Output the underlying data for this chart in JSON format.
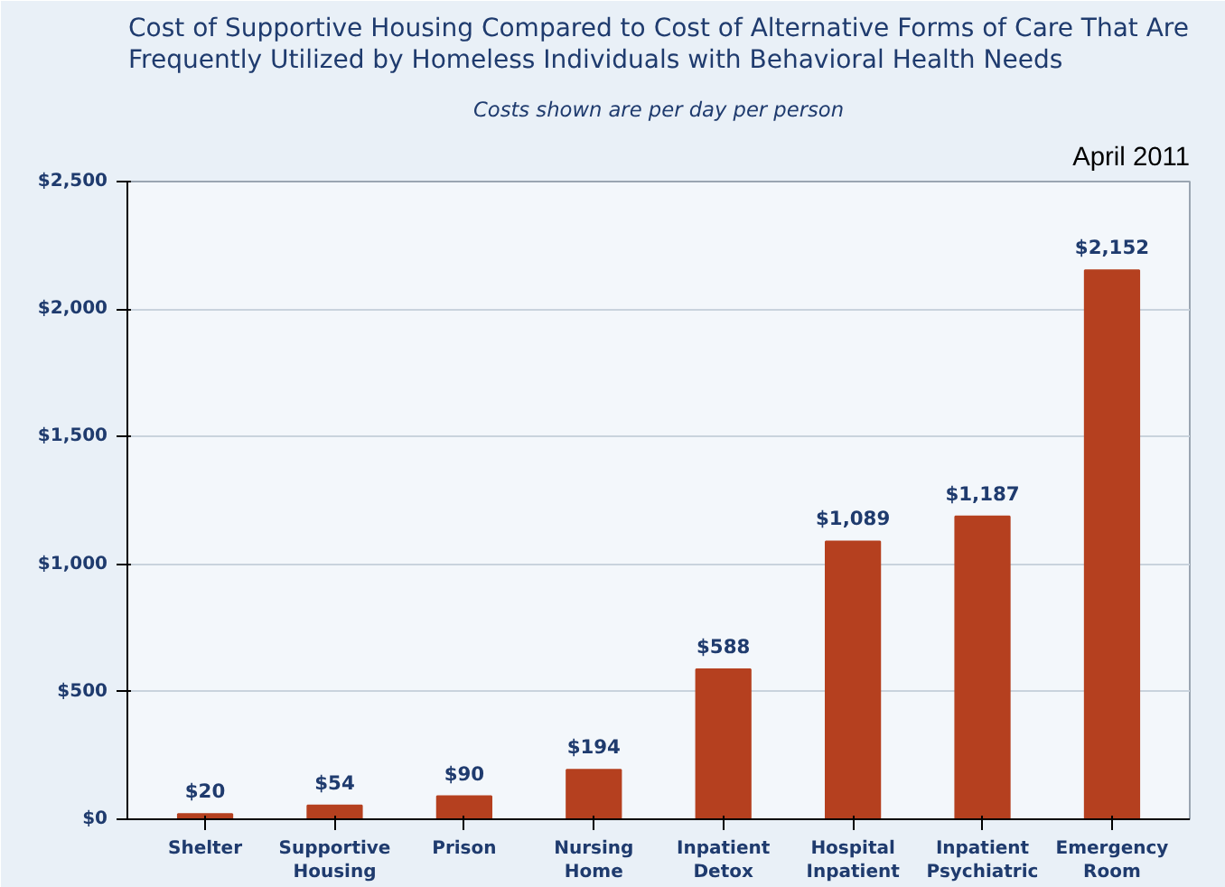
{
  "chart_data": {
    "type": "bar",
    "title": "Cost of Supportive Housing Compared to Cost of Alternative Forms of Care That Are\nFrequently Utilized by Homeless Individuals with Behavioral Health Needs",
    "subtitle": "Costs shown are per day per person",
    "annotations": [
      "April 2011"
    ],
    "categories": [
      "Shelter",
      "Supportive\nHousing",
      "Prison",
      "Nursing\nHome",
      "Inpatient\nDetox",
      "Hospital\nInpatient",
      "Inpatient\nPsychiatric",
      "Emergency\nRoom"
    ],
    "values": [
      20,
      54,
      90,
      194,
      588,
      1089,
      1187,
      2152
    ],
    "value_labels": [
      "$20",
      "$54",
      "$90",
      "$194",
      "$588",
      "$1,089",
      "$1,187",
      "$2,152"
    ],
    "color": "#b5401f",
    "ylim": [
      0,
      2500
    ],
    "yticks": [
      {
        "value": 0,
        "label": "$0"
      },
      {
        "value": 500,
        "label": "$500"
      },
      {
        "value": 1000,
        "label": "$1,000"
      },
      {
        "value": 1500,
        "label": "$1,500"
      },
      {
        "value": 2000,
        "label": "$2,000"
      },
      {
        "value": 2500,
        "label": "$2,500"
      }
    ],
    "grid": "y"
  }
}
